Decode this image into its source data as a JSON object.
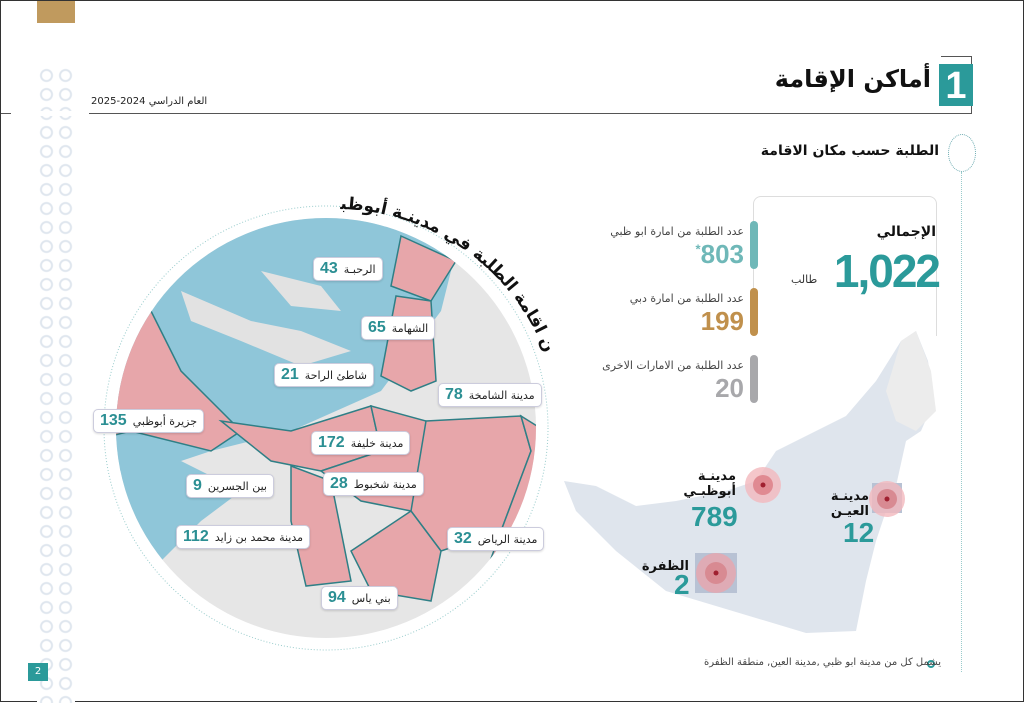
{
  "header": {
    "section_number": "1",
    "title": "أماكن الإقامة",
    "academic_year": "العام الدراسي 2024-2025"
  },
  "subtitle": "الطلبة حسب مكان الاقامة",
  "total": {
    "label": "الإجمالي",
    "value": "1,022",
    "unit": "طالب"
  },
  "stats": [
    {
      "label": "عدد الطلبة من امارة ابو ظبي",
      "value": "803",
      "mark": "*",
      "color": "#6fb8b8"
    },
    {
      "label": "عدد الطلبة من امارة دبي",
      "value": "199",
      "color": "#c0904c"
    },
    {
      "label": "عدد الطلبة من الامارات  الاخرى",
      "value": "20",
      "color": "#a8a8ab"
    }
  ],
  "map_title": "مكان اقامة الطلبة في مدينـة أبوظبـي",
  "districts": [
    {
      "name": "الرحبـة",
      "value": "43"
    },
    {
      "name": "الشهامة",
      "value": "65"
    },
    {
      "name": "شاطئ الراحة",
      "value": "21"
    },
    {
      "name": "مدينة الشامخة",
      "value": "78"
    },
    {
      "name": "جزيرة أبوظبي",
      "value": "135"
    },
    {
      "name": "مدينة خليفة",
      "value": "172"
    },
    {
      "name": "بين الجسرين",
      "value": "9"
    },
    {
      "name": "مدينة شخبوط",
      "value": "28"
    },
    {
      "name": "مدينة محمد بن زايد",
      "value": "112"
    },
    {
      "name": "مدينة الرياض",
      "value": "32"
    },
    {
      "name": "بني ياس",
      "value": "94"
    }
  ],
  "regions": [
    {
      "name1": "مدينـة",
      "name2": "أبوظبـي",
      "value": "789"
    },
    {
      "name1": "مدينـة",
      "name2": "العيـن",
      "value": "12"
    },
    {
      "name1": "الظفرة",
      "value": "2"
    }
  ],
  "footnote": "يشمل كل من مدينة ابو ظبي ,مدينة العين, منطقة الظفرة",
  "page_number": "2"
}
